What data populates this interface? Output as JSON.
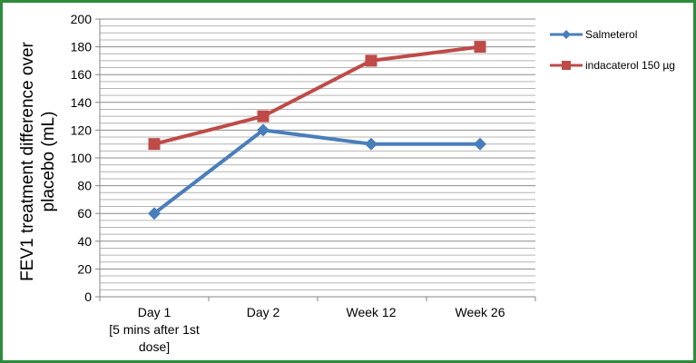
{
  "chart_data": {
    "type": "line",
    "title": "",
    "ylabel": "FEV1 treatment difference over placebo (mL)",
    "xlabel": "",
    "categories": [
      [
        "Day 1",
        "[5 mins after 1st",
        "dose]"
      ],
      [
        "Day 2"
      ],
      [
        "Week 12"
      ],
      [
        "Week 26"
      ]
    ],
    "ylim": [
      0,
      200
    ],
    "yticks": [
      0,
      20,
      40,
      60,
      80,
      100,
      120,
      140,
      160,
      180,
      200
    ],
    "minor_gridline_step": 5,
    "grid": true,
    "legend": "right",
    "series": [
      {
        "name": "Salmeterol",
        "values": [
          60,
          120,
          110,
          110
        ],
        "color": "#4a7ebb",
        "marker": "diamond"
      },
      {
        "name": "indacaterol 150 µg",
        "values": [
          110,
          130,
          170,
          180
        ],
        "color": "#be4b48",
        "marker": "square"
      }
    ]
  },
  "frame_color": "#2e8b3a"
}
